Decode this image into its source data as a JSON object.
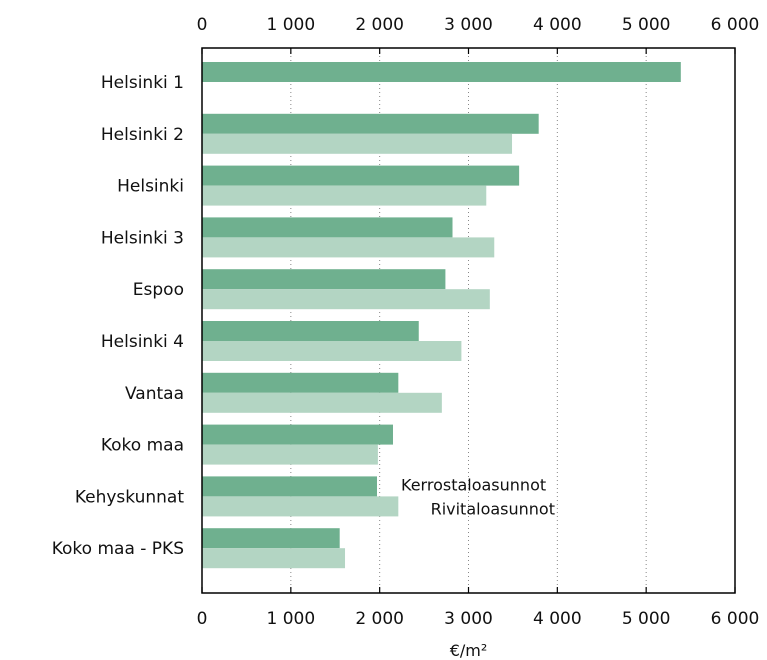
{
  "chart_data": {
    "type": "bar",
    "orientation": "horizontal",
    "categories": [
      "Helsinki 1",
      "Helsinki 2",
      "Helsinki",
      "Helsinki 3",
      "Espoo",
      "Helsinki 4",
      "Vantaa",
      "Koko maa",
      "Kehyskunnat",
      "Koko maa - PKS"
    ],
    "series": [
      {
        "name": "Kerrostaloasunnot",
        "color": "#6fb08f",
        "values": [
          5390,
          3790,
          3570,
          2820,
          2740,
          2440,
          2210,
          2150,
          1970,
          1550
        ]
      },
      {
        "name": "Rivitaloasunnot",
        "color": "#b3d5c3",
        "values": [
          null,
          3490,
          3200,
          3290,
          3240,
          2920,
          2700,
          1980,
          2210,
          1610
        ]
      }
    ],
    "xlim": [
      0,
      6000
    ],
    "x_ticks": [
      0,
      1000,
      2000,
      3000,
      4000,
      5000,
      6000
    ],
    "x_tick_labels": [
      "0",
      "1 000",
      "2 000",
      "3 000",
      "4 000",
      "5 000",
      "6 000"
    ],
    "xlabel": "€/m²",
    "grid": "vertical dotted",
    "legend_placement": "inline, right of Kehyskunnat bars"
  }
}
